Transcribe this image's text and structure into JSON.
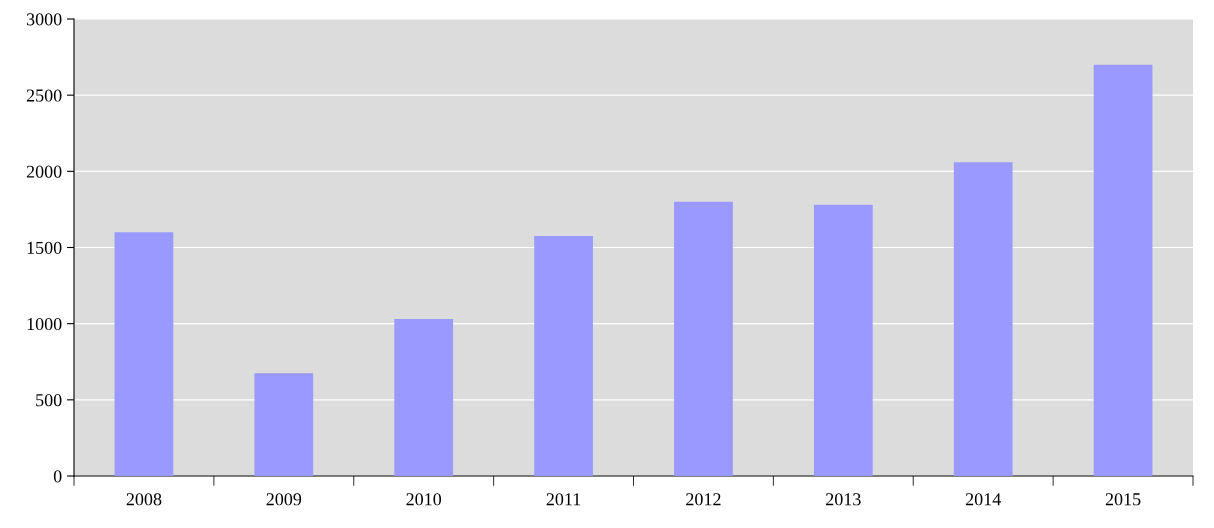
{
  "chart_data": {
    "type": "bar",
    "categories": [
      "2008",
      "2009",
      "2010",
      "2011",
      "2012",
      "2013",
      "2014",
      "2015"
    ],
    "values": [
      1600,
      675,
      1030,
      1575,
      1800,
      1780,
      2060,
      2700
    ],
    "color": "#9999ff",
    "ylim": [
      0,
      3000
    ],
    "yticks": [
      0,
      500,
      1000,
      1500,
      2000,
      2500,
      3000
    ],
    "grid": "y",
    "legend": false
  }
}
